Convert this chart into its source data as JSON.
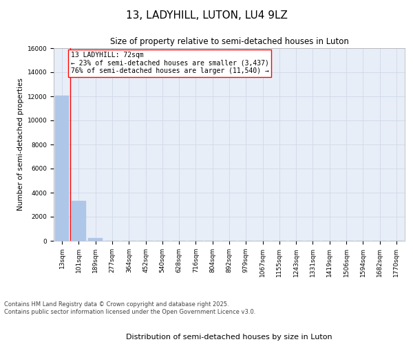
{
  "title": "13, LADYHILL, LUTON, LU4 9LZ",
  "subtitle": "Size of property relative to semi-detached houses in Luton",
  "xlabel": "Distribution of semi-detached houses by size in Luton",
  "ylabel": "Number of semi-detached properties",
  "categories": [
    "13sqm",
    "101sqm",
    "189sqm",
    "277sqm",
    "364sqm",
    "452sqm",
    "540sqm",
    "628sqm",
    "716sqm",
    "804sqm",
    "892sqm",
    "979sqm",
    "1067sqm",
    "1155sqm",
    "1243sqm",
    "1331sqm",
    "1419sqm",
    "1506sqm",
    "1594sqm",
    "1682sqm",
    "1770sqm"
  ],
  "values": [
    12050,
    3300,
    220,
    0,
    0,
    0,
    0,
    0,
    0,
    0,
    0,
    0,
    0,
    0,
    0,
    0,
    0,
    0,
    0,
    0,
    0
  ],
  "bar_color": "#aec6e8",
  "bar_edge_color": "#aec6e8",
  "red_line_x": 0.5,
  "annotation_box_text": "13 LADYHILL: 72sqm\n← 23% of semi-detached houses are smaller (3,437)\n76% of semi-detached houses are larger (11,540) →",
  "ylim": [
    0,
    16000
  ],
  "yticks": [
    0,
    2000,
    4000,
    6000,
    8000,
    10000,
    12000,
    14000,
    16000
  ],
  "grid_color": "#d0d8e8",
  "bg_color": "#e8eef8",
  "footer_text": "Contains HM Land Registry data © Crown copyright and database right 2025.\nContains public sector information licensed under the Open Government Licence v3.0.",
  "title_fontsize": 11,
  "subtitle_fontsize": 8.5,
  "ylabel_fontsize": 7.5,
  "xlabel_fontsize": 8,
  "tick_fontsize": 6.5,
  "annotation_fontsize": 7,
  "footer_fontsize": 6
}
